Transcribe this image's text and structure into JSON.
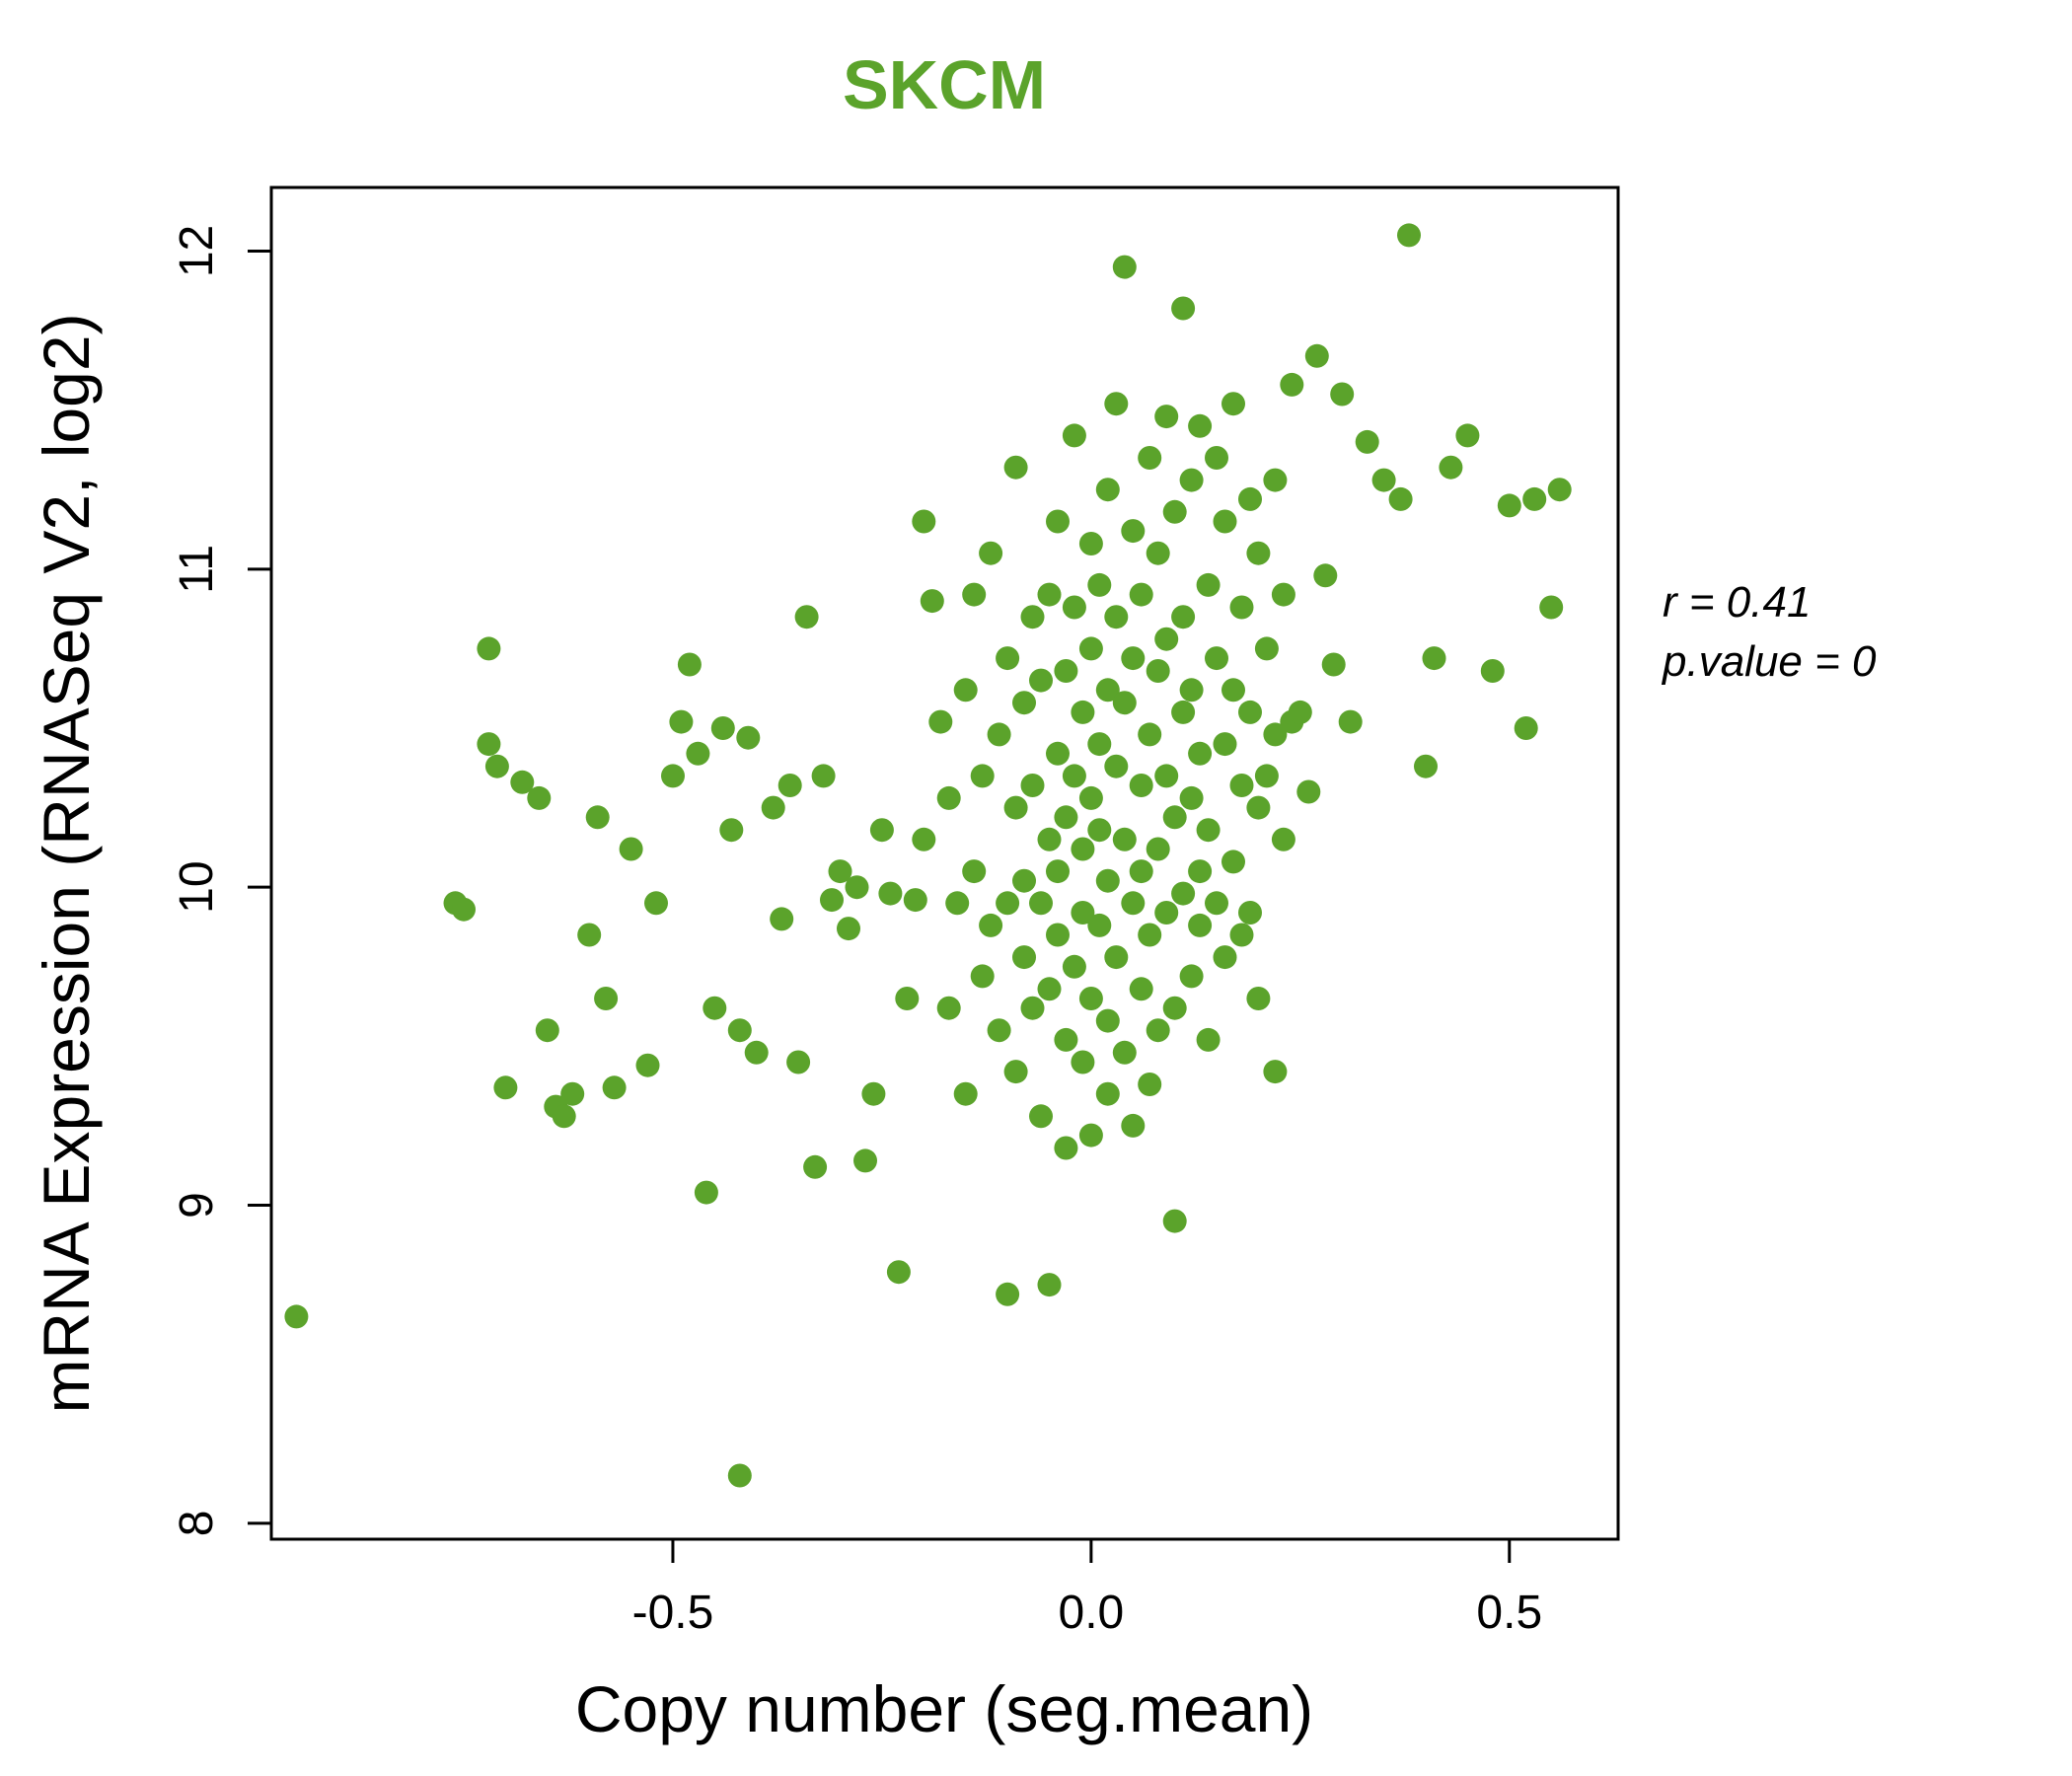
{
  "chart_data": {
    "type": "scatter",
    "title": "SKCM",
    "xlabel": "Copy number (seg.mean)",
    "ylabel": "mRNA Expression (RNASeq V2, log2)",
    "xlim": [
      -0.98,
      0.63
    ],
    "ylim": [
      7.95,
      12.2
    ],
    "xticks": {
      "values": [
        -0.5,
        0.0,
        0.5
      ],
      "labels": [
        "-0.5",
        "0.0",
        "0.5"
      ]
    },
    "yticks": {
      "values": [
        8,
        9,
        10,
        11,
        12
      ],
      "labels": [
        "8",
        "9",
        "10",
        "11",
        "12"
      ]
    },
    "annotation": {
      "line1": "r = 0.41",
      "line2": "p.value = 0"
    },
    "legend": "none",
    "grid": false,
    "colors": {
      "points": "#5ba32b",
      "title": "#5ba32b",
      "axis": "#000000"
    },
    "points": [
      [
        -0.95,
        8.65
      ],
      [
        -0.76,
        9.95
      ],
      [
        -0.75,
        9.93
      ],
      [
        -0.72,
        10.75
      ],
      [
        -0.72,
        10.45
      ],
      [
        -0.71,
        10.38
      ],
      [
        -0.7,
        9.37
      ],
      [
        -0.68,
        10.33
      ],
      [
        -0.66,
        10.28
      ],
      [
        -0.65,
        9.55
      ],
      [
        -0.64,
        9.31
      ],
      [
        -0.63,
        9.28
      ],
      [
        -0.62,
        9.35
      ],
      [
        -0.6,
        9.85
      ],
      [
        -0.59,
        10.22
      ],
      [
        -0.58,
        9.65
      ],
      [
        -0.57,
        9.37
      ],
      [
        -0.55,
        10.12
      ],
      [
        -0.53,
        9.44
      ],
      [
        -0.52,
        9.95
      ],
      [
        -0.5,
        10.35
      ],
      [
        -0.49,
        10.52
      ],
      [
        -0.48,
        10.7
      ],
      [
        -0.47,
        10.42
      ],
      [
        -0.46,
        9.04
      ],
      [
        -0.45,
        9.62
      ],
      [
        -0.44,
        10.5
      ],
      [
        -0.43,
        10.18
      ],
      [
        -0.42,
        8.15
      ],
      [
        -0.42,
        9.55
      ],
      [
        -0.41,
        10.47
      ],
      [
        -0.4,
        9.48
      ],
      [
        -0.38,
        10.25
      ],
      [
        -0.37,
        9.9
      ],
      [
        -0.36,
        10.32
      ],
      [
        -0.35,
        9.45
      ],
      [
        -0.34,
        10.85
      ],
      [
        -0.33,
        9.12
      ],
      [
        -0.32,
        10.35
      ],
      [
        -0.31,
        9.96
      ],
      [
        -0.3,
        10.05
      ],
      [
        -0.29,
        9.87
      ],
      [
        -0.28,
        10.0
      ],
      [
        -0.27,
        9.14
      ],
      [
        -0.26,
        9.35
      ],
      [
        -0.25,
        10.18
      ],
      [
        -0.24,
        9.98
      ],
      [
        -0.23,
        8.79
      ],
      [
        -0.22,
        9.65
      ],
      [
        -0.21,
        9.96
      ],
      [
        -0.2,
        10.15
      ],
      [
        -0.2,
        11.15
      ],
      [
        -0.19,
        10.9
      ],
      [
        -0.18,
        10.52
      ],
      [
        -0.17,
        9.62
      ],
      [
        -0.17,
        10.28
      ],
      [
        -0.16,
        9.95
      ],
      [
        -0.15,
        10.62
      ],
      [
        -0.15,
        9.35
      ],
      [
        -0.14,
        10.92
      ],
      [
        -0.14,
        10.05
      ],
      [
        -0.13,
        9.72
      ],
      [
        -0.13,
        10.35
      ],
      [
        -0.12,
        11.05
      ],
      [
        -0.12,
        9.88
      ],
      [
        -0.11,
        10.48
      ],
      [
        -0.11,
        9.55
      ],
      [
        -0.1,
        10.72
      ],
      [
        -0.1,
        9.95
      ],
      [
        -0.1,
        8.72
      ],
      [
        -0.09,
        10.25
      ],
      [
        -0.09,
        9.42
      ],
      [
        -0.09,
        11.32
      ],
      [
        -0.08,
        10.58
      ],
      [
        -0.08,
        9.78
      ],
      [
        -0.08,
        10.02
      ],
      [
        -0.07,
        10.85
      ],
      [
        -0.07,
        9.62
      ],
      [
        -0.07,
        10.32
      ],
      [
        -0.06,
        9.95
      ],
      [
        -0.06,
        10.65
      ],
      [
        -0.06,
        9.28
      ],
      [
        -0.05,
        10.15
      ],
      [
        -0.05,
        10.92
      ],
      [
        -0.05,
        9.68
      ],
      [
        -0.05,
        8.75
      ],
      [
        -0.04,
        10.42
      ],
      [
        -0.04,
        9.85
      ],
      [
        -0.04,
        11.15
      ],
      [
        -0.04,
        10.05
      ],
      [
        -0.03,
        9.52
      ],
      [
        -0.03,
        10.68
      ],
      [
        -0.03,
        10.22
      ],
      [
        -0.03,
        9.18
      ],
      [
        -0.02,
        10.88
      ],
      [
        -0.02,
        10.35
      ],
      [
        -0.02,
        9.75
      ],
      [
        -0.02,
        11.42
      ],
      [
        -0.01,
        10.12
      ],
      [
        -0.01,
        9.45
      ],
      [
        -0.01,
        10.55
      ],
      [
        -0.01,
        9.92
      ],
      [
        0.0,
        10.75
      ],
      [
        0.0,
        10.28
      ],
      [
        0.0,
        9.65
      ],
      [
        0.0,
        11.08
      ],
      [
        0.0,
        9.22
      ],
      [
        0.01,
        10.45
      ],
      [
        0.01,
        9.88
      ],
      [
        0.01,
        10.95
      ],
      [
        0.01,
        10.18
      ],
      [
        0.02,
        9.58
      ],
      [
        0.02,
        10.62
      ],
      [
        0.02,
        11.25
      ],
      [
        0.02,
        9.35
      ],
      [
        0.02,
        10.02
      ],
      [
        0.03,
        10.38
      ],
      [
        0.03,
        9.78
      ],
      [
        0.03,
        11.52
      ],
      [
        0.03,
        10.85
      ],
      [
        0.04,
        10.15
      ],
      [
        0.04,
        9.48
      ],
      [
        0.04,
        11.95
      ],
      [
        0.04,
        10.58
      ],
      [
        0.05,
        9.95
      ],
      [
        0.05,
        10.72
      ],
      [
        0.05,
        9.25
      ],
      [
        0.05,
        11.12
      ],
      [
        0.06,
        10.32
      ],
      [
        0.06,
        9.68
      ],
      [
        0.06,
        10.92
      ],
      [
        0.06,
        10.05
      ],
      [
        0.07,
        11.35
      ],
      [
        0.07,
        9.85
      ],
      [
        0.07,
        10.48
      ],
      [
        0.07,
        9.38
      ],
      [
        0.08,
        10.68
      ],
      [
        0.08,
        10.12
      ],
      [
        0.08,
        11.05
      ],
      [
        0.08,
        9.55
      ],
      [
        0.09,
        10.35
      ],
      [
        0.09,
        9.92
      ],
      [
        0.09,
        11.48
      ],
      [
        0.09,
        10.78
      ],
      [
        0.1,
        10.22
      ],
      [
        0.1,
        9.62
      ],
      [
        0.1,
        11.18
      ],
      [
        0.1,
        8.95
      ],
      [
        0.11,
        10.55
      ],
      [
        0.11,
        9.98
      ],
      [
        0.11,
        10.85
      ],
      [
        0.11,
        11.82
      ],
      [
        0.12,
        10.28
      ],
      [
        0.12,
        9.72
      ],
      [
        0.12,
        11.28
      ],
      [
        0.12,
        10.62
      ],
      [
        0.13,
        10.05
      ],
      [
        0.13,
        11.45
      ],
      [
        0.13,
        9.88
      ],
      [
        0.13,
        10.42
      ],
      [
        0.14,
        10.95
      ],
      [
        0.14,
        10.18
      ],
      [
        0.14,
        9.52
      ],
      [
        0.15,
        10.72
      ],
      [
        0.15,
        11.35
      ],
      [
        0.15,
        9.95
      ],
      [
        0.16,
        10.45
      ],
      [
        0.16,
        11.15
      ],
      [
        0.16,
        9.78
      ],
      [
        0.17,
        10.62
      ],
      [
        0.17,
        10.08
      ],
      [
        0.17,
        11.52
      ],
      [
        0.18,
        10.32
      ],
      [
        0.18,
        9.85
      ],
      [
        0.18,
        10.88
      ],
      [
        0.19,
        10.55
      ],
      [
        0.19,
        11.22
      ],
      [
        0.19,
        9.92
      ],
      [
        0.2,
        10.25
      ],
      [
        0.2,
        11.05
      ],
      [
        0.2,
        9.65
      ],
      [
        0.21,
        10.75
      ],
      [
        0.21,
        10.35
      ],
      [
        0.22,
        11.28
      ],
      [
        0.22,
        10.48
      ],
      [
        0.22,
        9.42
      ],
      [
        0.23,
        10.92
      ],
      [
        0.23,
        10.15
      ],
      [
        0.24,
        11.58
      ],
      [
        0.24,
        10.52
      ],
      [
        0.25,
        10.55
      ],
      [
        0.26,
        10.3
      ],
      [
        0.27,
        11.67
      ],
      [
        0.28,
        10.98
      ],
      [
        0.29,
        10.7
      ],
      [
        0.3,
        11.55
      ],
      [
        0.31,
        10.52
      ],
      [
        0.33,
        11.4
      ],
      [
        0.35,
        11.28
      ],
      [
        0.37,
        11.22
      ],
      [
        0.38,
        12.05
      ],
      [
        0.4,
        10.38
      ],
      [
        0.41,
        10.72
      ],
      [
        0.43,
        11.32
      ],
      [
        0.45,
        11.42
      ],
      [
        0.48,
        10.68
      ],
      [
        0.5,
        11.2
      ],
      [
        0.52,
        10.5
      ],
      [
        0.53,
        11.22
      ],
      [
        0.55,
        10.88
      ],
      [
        0.56,
        11.25
      ]
    ]
  }
}
